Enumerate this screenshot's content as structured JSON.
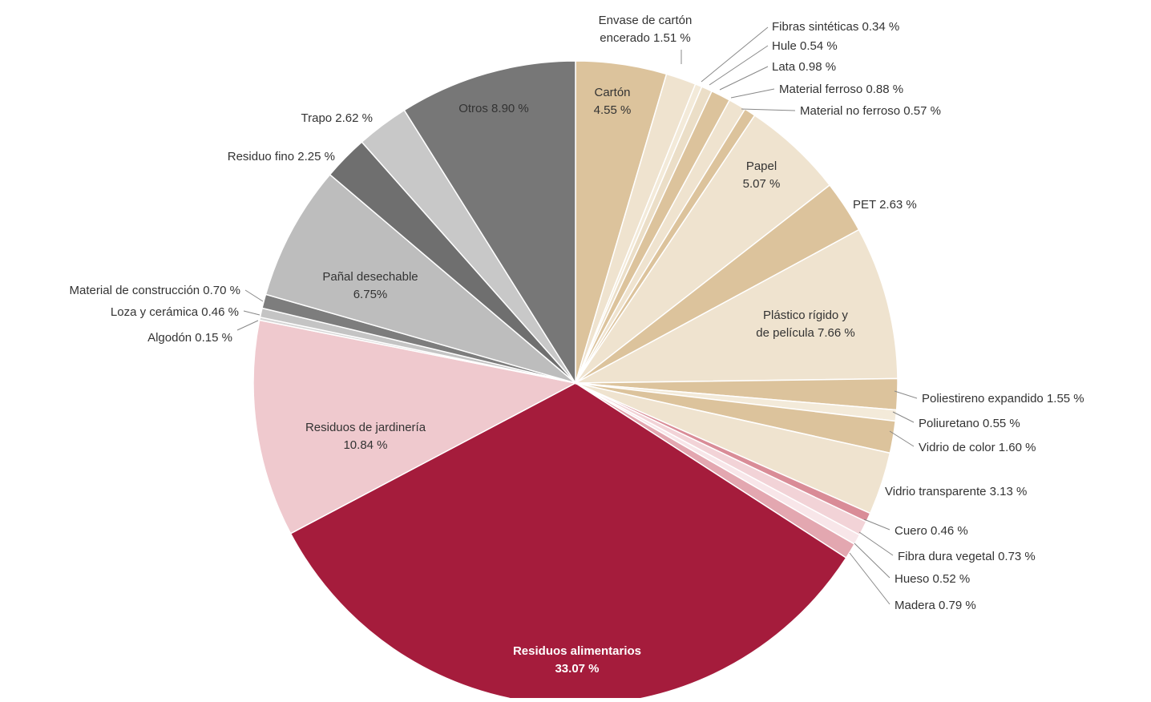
{
  "chart_data": {
    "type": "pie",
    "unit": "%",
    "slices": [
      {
        "label": "Cartón",
        "value": 4.55,
        "text": [
          "Cartón",
          "4.55 %"
        ],
        "color": "#dcc39c"
      },
      {
        "label": "Envase de cartón encerado",
        "value": 1.51,
        "text": [
          "Envase de cartón",
          "encerado 1.51 %"
        ],
        "color": "#efe3cf"
      },
      {
        "label": "Fibras sintéticas",
        "value": 0.34,
        "text": [
          "Fibras sintéticas 0.34 %"
        ],
        "color": "#f3ead9"
      },
      {
        "label": "Hule",
        "value": 0.54,
        "text": [
          "Hule 0.54 %"
        ],
        "color": "#ebdec7"
      },
      {
        "label": "Lata",
        "value": 0.98,
        "text": [
          "Lata 0.98 %"
        ],
        "color": "#dcc39c"
      },
      {
        "label": "Material ferroso",
        "value": 0.88,
        "text": [
          "Material ferroso 0.88 %"
        ],
        "color": "#efe3cf"
      },
      {
        "label": "Material no ferroso",
        "value": 0.57,
        "text": [
          "Material no ferroso 0.57 %"
        ],
        "color": "#dcc39c"
      },
      {
        "label": "Papel",
        "value": 5.07,
        "text": [
          "Papel",
          "5.07 %"
        ],
        "color": "#efe3cf"
      },
      {
        "label": "PET",
        "value": 2.63,
        "text": [
          "PET 2.63 %"
        ],
        "color": "#dcc39c"
      },
      {
        "label": "Plástico rígido y de película",
        "value": 7.66,
        "text": [
          "Plástico rígido y",
          "de película 7.66 %"
        ],
        "color": "#efe3cf"
      },
      {
        "label": "Poliestireno expandido",
        "value": 1.55,
        "text": [
          "Poliestireno expandido 1.55 %"
        ],
        "color": "#dcc39c"
      },
      {
        "label": "Poliuretano",
        "value": 0.55,
        "text": [
          "Poliuretano 0.55 %"
        ],
        "color": "#f3ead9"
      },
      {
        "label": "Vidrio de color",
        "value": 1.6,
        "text": [
          "Vidrio de color 1.60 %"
        ],
        "color": "#dcc39c"
      },
      {
        "label": "Vidrio transparente",
        "value": 3.13,
        "text": [
          "Vidrio transparente 3.13 %"
        ],
        "color": "#efe3cf"
      },
      {
        "label": "Cuero",
        "value": 0.46,
        "text": [
          "Cuero 0.46 %"
        ],
        "color": "#d98c97"
      },
      {
        "label": "Fibra dura vegetal",
        "value": 0.73,
        "text": [
          "Fibra dura vegetal 0.73 %"
        ],
        "color": "#f2d3d7"
      },
      {
        "label": "Hueso",
        "value": 0.52,
        "text": [
          "Hueso 0.52 %"
        ],
        "color": "#f8e6e9"
      },
      {
        "label": "Madera",
        "value": 0.79,
        "text": [
          "Madera 0.79 %"
        ],
        "color": "#e3a7b0"
      },
      {
        "label": "Residuos alimentarios",
        "value": 33.07,
        "text": [
          "Residuos alimentarios",
          "33.07 %"
        ],
        "color": "#a51c3c"
      },
      {
        "label": "Residuos de jardinería",
        "value": 10.84,
        "text": [
          "Residuos de jardinería",
          "10.84 %"
        ],
        "color": "#efc9ce"
      },
      {
        "label": "Algodón",
        "value": 0.15,
        "text": [
          "Algodón 0.15 %"
        ],
        "color": "#d6d6d6"
      },
      {
        "label": "Loza y cerámica",
        "value": 0.46,
        "text": [
          "Loza y cerámica 0.46 %"
        ],
        "color": "#c4c4c4"
      },
      {
        "label": "Material de construcción",
        "value": 0.7,
        "text": [
          "Material de construcción 0.70 %"
        ],
        "color": "#7d7d7d"
      },
      {
        "label": "Pañal desechable",
        "value": 6.75,
        "text": [
          "Pañal desechable",
          "6.75%"
        ],
        "color": "#bdbdbd"
      },
      {
        "label": "Residuo fino",
        "value": 2.25,
        "text": [
          "Residuo fino 2.25 %"
        ],
        "color": "#6f6f6f"
      },
      {
        "label": "Trapo",
        "value": 2.62,
        "text": [
          "Trapo 2.62 %"
        ],
        "color": "#c8c8c8"
      },
      {
        "label": "Otros",
        "value": 8.9,
        "text": [
          "Otros 8.90 %"
        ],
        "color": "#777777"
      }
    ]
  }
}
